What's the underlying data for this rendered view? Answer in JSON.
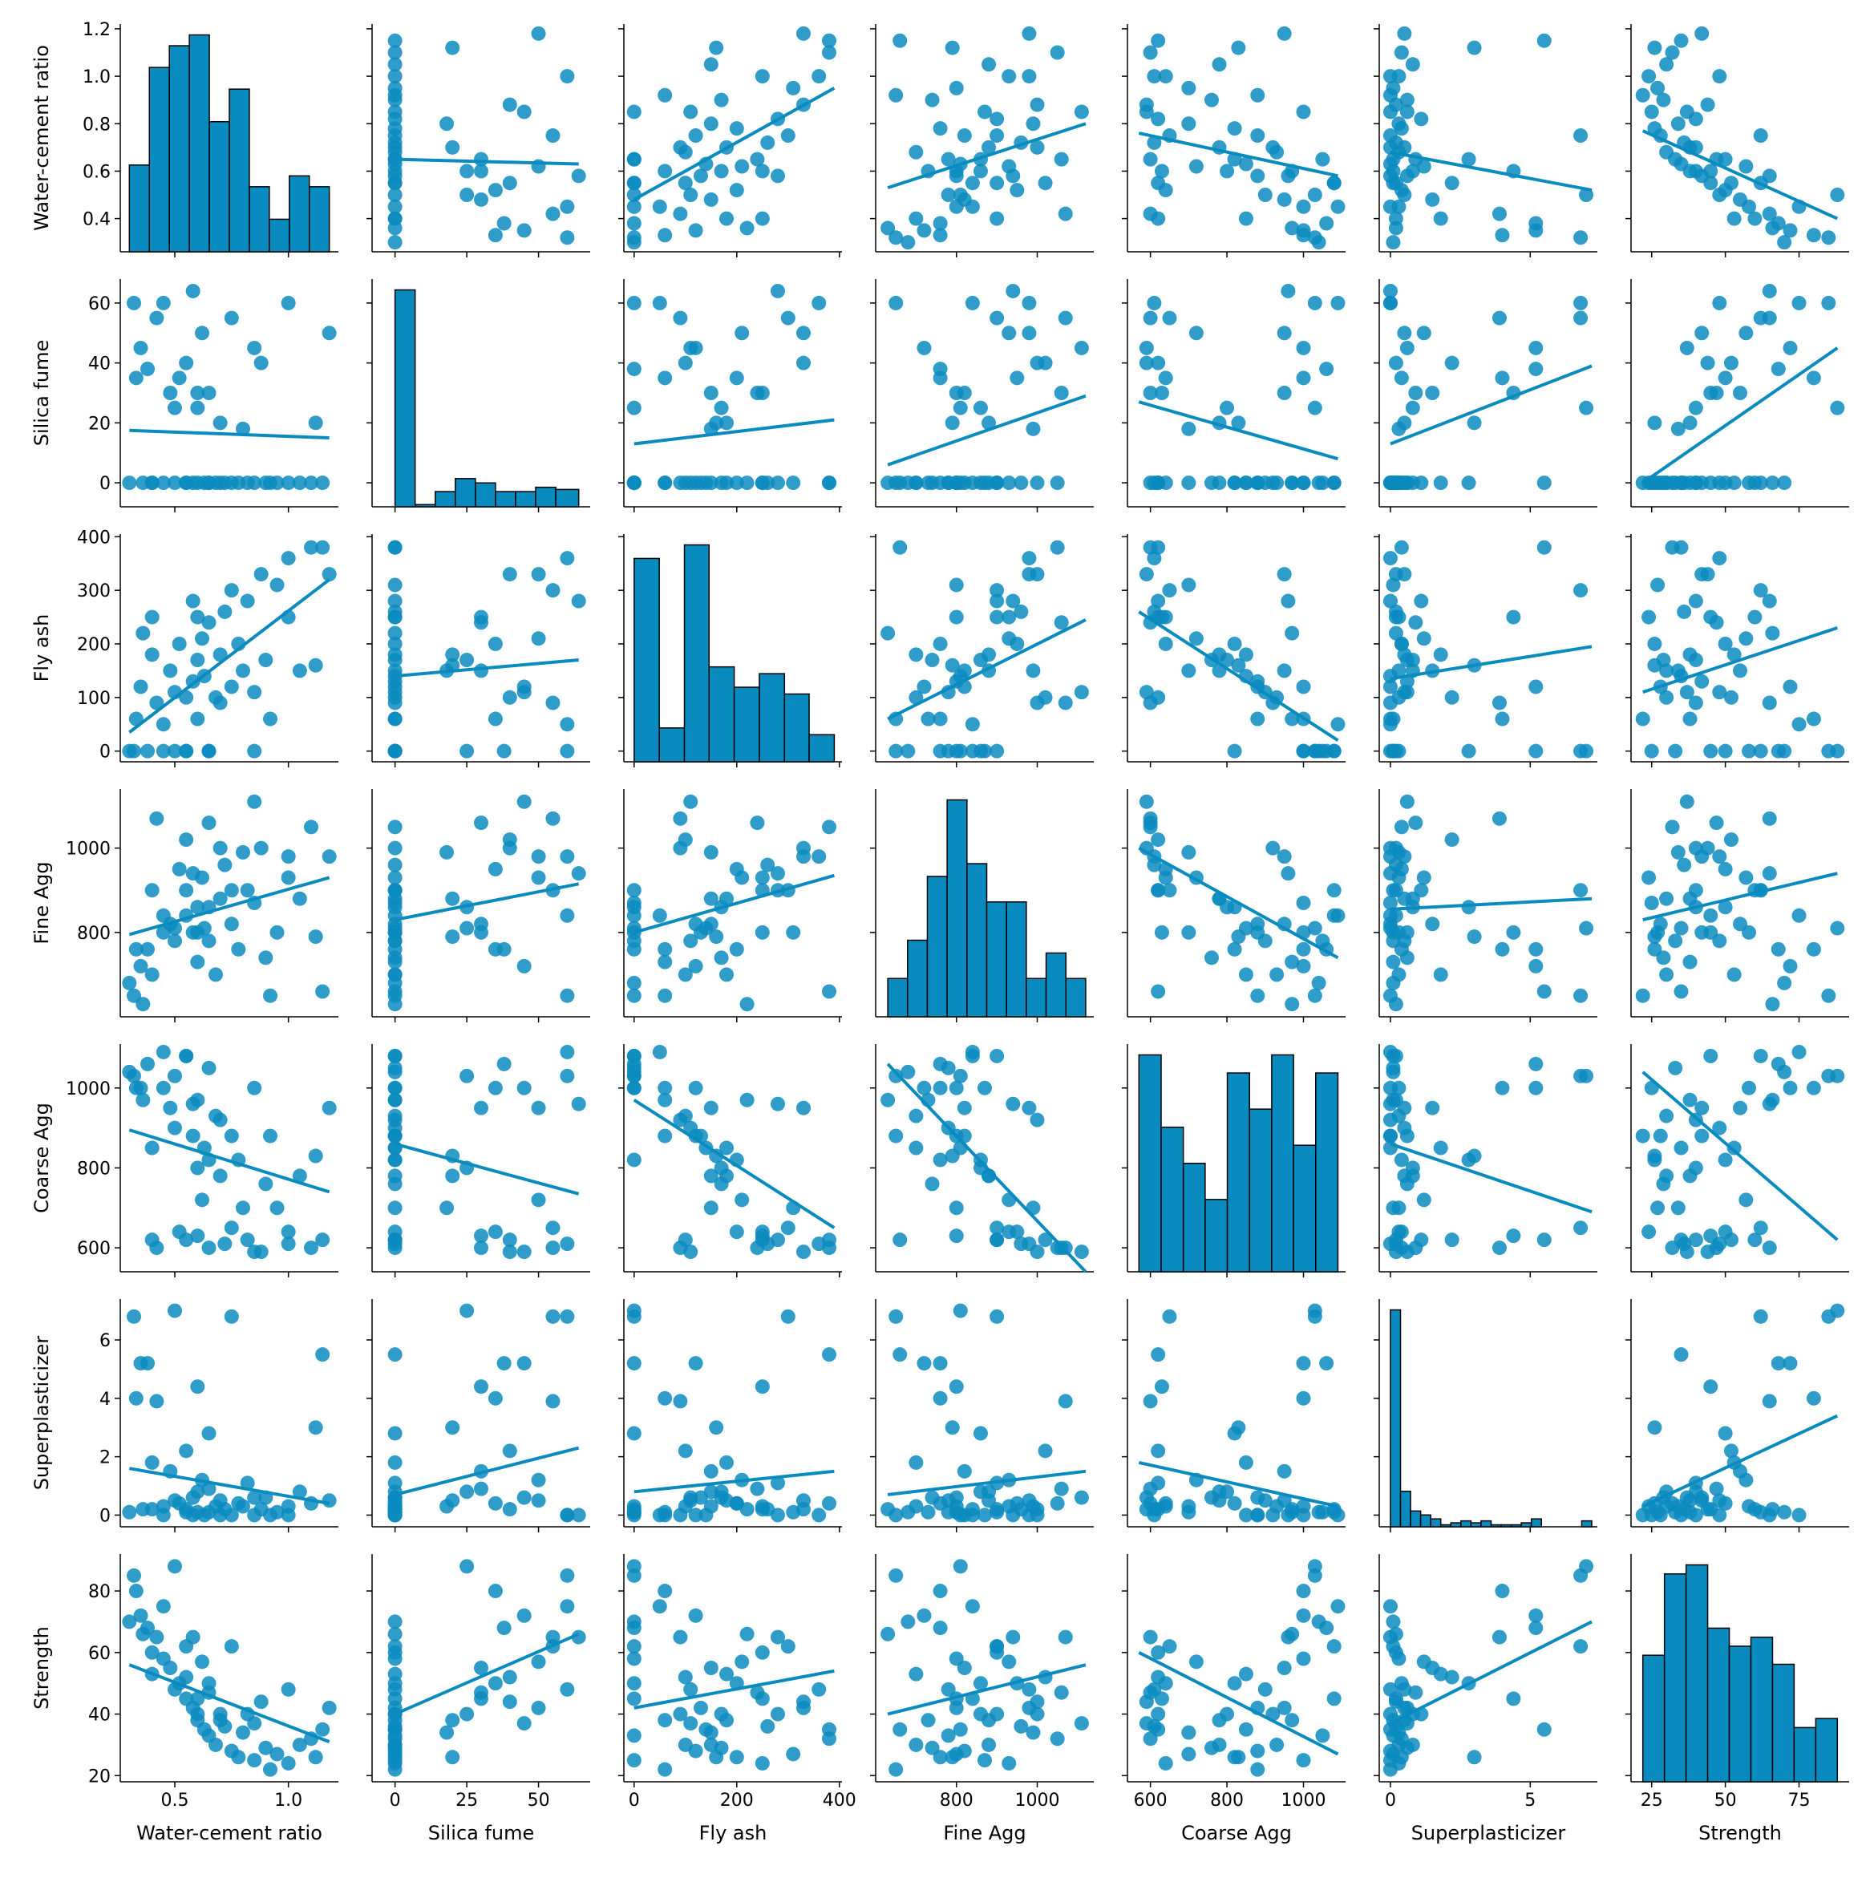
{
  "chart_data": {
    "type": "pairplot",
    "color": "#0a8bbf",
    "variables": [
      {
        "name": "Water-cement ratio",
        "lim": [
          0.26,
          1.22
        ],
        "xticks": [
          0.5,
          {
            "value": 1,
            "label": "1.0"
          }
        ],
        "yticks": [
          0.4,
          0.6,
          0.8,
          {
            "value": 1,
            "label": "1.0"
          },
          1.2
        ],
        "fit_x": [
          0.3,
          1.18
        ],
        "bins": [
          0.3,
          0.388,
          0.476,
          0.564,
          0.652,
          0.74,
          0.828,
          0.916,
          1.004,
          1.092,
          1.18
        ],
        "counts": [
          8,
          17,
          19,
          20,
          12,
          15,
          6,
          3,
          7,
          6
        ]
      },
      {
        "name": "Silica fume",
        "lim": [
          -8,
          68
        ],
        "xticks": [
          0,
          25,
          50
        ],
        "yticks": [
          0,
          20,
          40,
          60
        ],
        "fit_x": [
          0,
          64
        ],
        "bins": [
          0,
          7,
          14,
          21,
          28,
          35,
          42,
          49,
          56,
          64
        ],
        "counts": [
          100,
          1,
          7,
          13,
          11,
          7,
          7,
          9,
          8
        ]
      },
      {
        "name": "Fly ash",
        "lim": [
          -20,
          405
        ],
        "xticks": [
          0,
          200,
          400
        ],
        "yticks": [
          0,
          100,
          200,
          300,
          400
        ],
        "fit_x": [
          0,
          390
        ],
        "bins": [
          0,
          49,
          98,
          146,
          195,
          244,
          293,
          341,
          390
        ],
        "counts": [
          30,
          5,
          32,
          14,
          11,
          13,
          10,
          4
        ]
      },
      {
        "name": "Fine Agg",
        "lim": [
          600,
          1140
        ],
        "xticks": [
          800,
          1000
        ],
        "yticks": [
          800,
          1000
        ],
        "fit_x": [
          630,
          1120
        ],
        "bins": [
          630,
          679,
          728,
          777,
          826,
          875,
          924,
          973,
          1022,
          1071,
          1120
        ],
        "counts": [
          3,
          6,
          11,
          17,
          12,
          9,
          9,
          3,
          5,
          3
        ]
      },
      {
        "name": "Coarse Agg",
        "lim": [
          540,
          1110
        ],
        "xticks": [
          600,
          800,
          1000
        ],
        "yticks": [
          600,
          800,
          1000
        ],
        "fit_x": [
          570,
          1090
        ],
        "bins": [
          570,
          628,
          686,
          743,
          801,
          859,
          917,
          974,
          1032,
          1090
        ],
        "counts": [
          12,
          8,
          6,
          4,
          11,
          9,
          12,
          7,
          11
        ]
      },
      {
        "name": "Superplasticizer",
        "lim": [
          -0.4,
          7.4
        ],
        "xticks": [
          0,
          5
        ],
        "yticks": [
          0,
          2,
          4,
          6
        ],
        "fit_x": [
          0,
          7.2
        ],
        "bins": [
          0,
          0.36,
          0.72,
          1.08,
          1.44,
          1.8,
          2.16,
          2.52,
          2.88,
          3.24,
          3.6,
          3.96,
          4.32,
          4.68,
          5.04,
          5.4,
          5.76,
          6.12,
          6.48,
          6.84,
          7.2
        ],
        "counts": [
          55,
          9,
          4,
          3,
          2,
          0.5,
          1,
          1.5,
          1,
          1.5,
          0.5,
          0.5,
          0.5,
          1,
          2,
          0,
          0,
          0,
          0,
          1.5
        ]
      },
      {
        "name": "Strength",
        "lim": [
          18,
          92
        ],
        "xticks": [
          25,
          50,
          75
        ],
        "yticks": [
          20,
          40,
          60,
          80
        ],
        "fit_x": [
          22,
          88
        ],
        "bins": [
          22,
          29.33,
          36.67,
          44,
          51.33,
          58.67,
          66,
          73.33,
          80.67,
          88
        ],
        "counts": [
          14,
          23,
          24,
          17,
          15,
          16,
          13,
          6,
          7
        ]
      }
    ],
    "samples": [
      [
        0.3,
        0,
        0,
        680,
        1040,
        0.1,
        70
      ],
      [
        0.32,
        60,
        0,
        650,
        1030,
        6.8,
        85
      ],
      [
        0.35,
        45,
        120,
        720,
        1000,
        5.2,
        72
      ],
      [
        0.38,
        38,
        0,
        760,
        1060,
        5.2,
        68
      ],
      [
        0.4,
        0,
        250,
        900,
        620,
        0.2,
        60
      ],
      [
        0.42,
        55,
        90,
        1070,
        600,
        3.9,
        65
      ],
      [
        0.45,
        0,
        0,
        800,
        1000,
        0.3,
        58
      ],
      [
        0.48,
        30,
        150,
        820,
        950,
        1.5,
        55
      ],
      [
        0.5,
        0,
        110,
        780,
        900,
        0.5,
        48
      ],
      [
        0.52,
        35,
        200,
        950,
        640,
        0.4,
        50
      ],
      [
        0.55,
        0,
        0,
        840,
        1080,
        0.2,
        45
      ],
      [
        0.55,
        40,
        100,
        1020,
        620,
        2.2,
        52
      ],
      [
        0.58,
        0,
        130,
        800,
        880,
        0.6,
        42
      ],
      [
        0.6,
        25,
        170,
        860,
        800,
        0.8,
        40
      ],
      [
        0.6,
        0,
        60,
        730,
        970,
        0.1,
        38
      ],
      [
        0.62,
        50,
        210,
        930,
        720,
        1.2,
        57
      ],
      [
        0.63,
        0,
        140,
        810,
        850,
        0,
        35
      ],
      [
        0.65,
        0,
        0,
        780,
        1050,
        0.1,
        33
      ],
      [
        0.65,
        30,
        240,
        1060,
        600,
        0.9,
        47
      ],
      [
        0.68,
        0,
        100,
        700,
        930,
        0.3,
        30
      ],
      [
        0.7,
        20,
        180,
        880,
        780,
        0.5,
        38
      ],
      [
        0.72,
        0,
        260,
        960,
        610,
        0.2,
        36
      ],
      [
        0.75,
        0,
        120,
        820,
        880,
        0,
        28
      ],
      [
        0.75,
        55,
        300,
        900,
        650,
        6.8,
        62
      ],
      [
        0.78,
        0,
        200,
        760,
        820,
        0.4,
        26
      ],
      [
        0.8,
        18,
        150,
        990,
        700,
        0.3,
        34
      ],
      [
        0.82,
        0,
        280,
        900,
        620,
        1.1,
        40
      ],
      [
        0.85,
        0,
        0,
        870,
        1000,
        0,
        25
      ],
      [
        0.88,
        40,
        330,
        1000,
        590,
        0.2,
        44
      ],
      [
        0.9,
        0,
        170,
        740,
        760,
        0.6,
        29
      ],
      [
        0.95,
        0,
        310,
        800,
        700,
        0.1,
        27
      ],
      [
        1.0,
        0,
        250,
        930,
        640,
        0.3,
        24
      ],
      [
        1.0,
        60,
        360,
        980,
        610,
        0,
        48
      ],
      [
        1.05,
        0,
        150,
        880,
        780,
        0.8,
        30
      ],
      [
        1.1,
        0,
        380,
        1050,
        600,
        0.4,
        32
      ],
      [
        1.12,
        20,
        160,
        790,
        830,
        3.0,
        26
      ],
      [
        1.15,
        0,
        380,
        660,
        620,
        5.5,
        35
      ],
      [
        1.18,
        50,
        330,
        980,
        950,
        0.5,
        42
      ],
      [
        0.45,
        60,
        50,
        840,
        1090,
        0,
        75
      ],
      [
        0.55,
        0,
        0,
        900,
        1080,
        0.1,
        62
      ],
      [
        0.6,
        30,
        250,
        800,
        630,
        4.4,
        45
      ],
      [
        0.4,
        0,
        180,
        700,
        850,
        1.8,
        53
      ],
      [
        0.7,
        0,
        90,
        1000,
        920,
        0,
        40
      ],
      [
        0.5,
        25,
        0,
        810,
        1030,
        7.0,
        88
      ],
      [
        0.36,
        0,
        220,
        630,
        970,
        0.2,
        66
      ],
      [
        0.85,
        45,
        110,
        1110,
        590,
        0.6,
        37
      ],
      [
        0.65,
        0,
        0,
        860,
        820,
        2.8,
        50
      ],
      [
        0.33,
        35,
        60,
        760,
        1000,
        4.0,
        80
      ],
      [
        0.92,
        0,
        60,
        650,
        880,
        0,
        22
      ],
      [
        0.58,
        64,
        280,
        940,
        960,
        0,
        65
      ]
    ],
    "fits": [
      [
        null,
        [
          0.65,
          0.63
        ],
        [
          0.48,
          0.95
        ],
        [
          0.53,
          0.8
        ],
        [
          0.76,
          0.58
        ],
        [
          0.68,
          0.52
        ],
        [
          0.77,
          0.4
        ]
      ],
      [
        [
          17.5,
          15
        ],
        null,
        [
          13,
          21
        ],
        [
          6,
          29
        ],
        [
          27,
          8
        ],
        [
          13,
          39
        ],
        [
          0,
          45
        ]
      ],
      [
        [
          35,
          320
        ],
        [
          140,
          170
        ],
        null,
        [
          60,
          245
        ],
        [
          260,
          20
        ],
        [
          135,
          195
        ],
        [
          110,
          230
        ]
      ],
      [
        [
          795,
          930
        ],
        [
          830,
          915
        ],
        [
          800,
          935
        ],
        null,
        [
          1000,
          740
        ],
        [
          855,
          880
        ],
        [
          830,
          940
        ]
      ],
      [
        [
          895,
          740
        ],
        [
          860,
          735
        ],
        [
          970,
          650
        ],
        [
          1060,
          540
        ],
        null,
        [
          860,
          690
        ],
        [
          1040,
          620
        ]
      ],
      [
        [
          1.6,
          0.4
        ],
        [
          0.7,
          2.3
        ],
        [
          0.8,
          1.5
        ],
        [
          0.7,
          1.5
        ],
        [
          1.8,
          0.3
        ],
        null,
        [
          0.3,
          3.4
        ]
      ],
      [
        [
          56,
          31
        ],
        [
          40,
          66
        ],
        [
          42,
          54
        ],
        [
          40,
          56
        ],
        [
          60,
          27
        ],
        [
          37,
          70
        ],
        null
      ]
    ]
  }
}
